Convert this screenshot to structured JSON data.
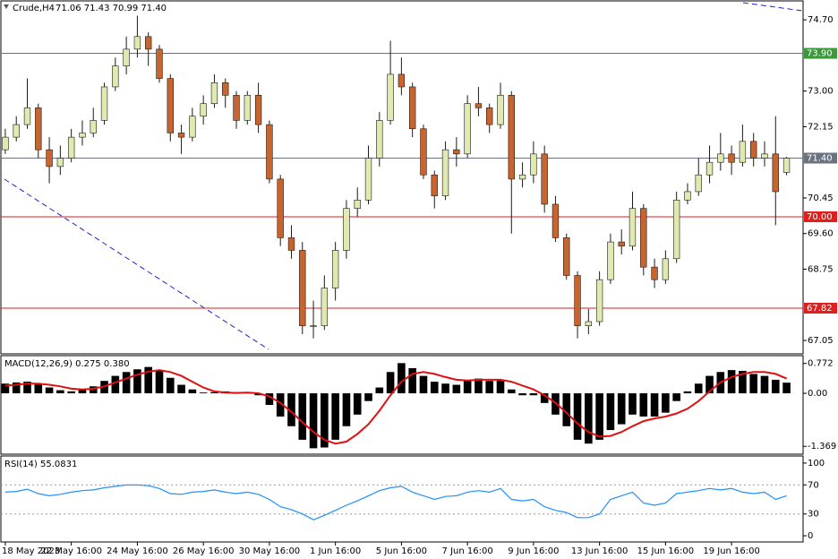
{
  "chart_data": {
    "type": "candlestick",
    "symbol": "Crude,H4",
    "ohlc_label": "71.06 71.43 70.99 71.40",
    "bull_color": "#dfe9b0",
    "bear_color": "#c8642d",
    "wick_color": "#1a1a1a",
    "xlim": [
      -0.4,
      72.5
    ],
    "xticks": [
      {
        "value": 0,
        "label": "18 May 2023"
      },
      {
        "value": 6,
        "label": "22 May 16:00"
      },
      {
        "value": 12,
        "label": "24 May 16:00"
      },
      {
        "value": 18,
        "label": "26 May 16:00"
      },
      {
        "value": 24,
        "label": "30 May 16:00"
      },
      {
        "value": 30,
        "label": "1 Jun 16:00"
      },
      {
        "value": 36,
        "label": "5 Jun 16:00"
      },
      {
        "value": 42,
        "label": "7 Jun 16:00"
      },
      {
        "value": 48,
        "label": "9 Jun 16:00"
      },
      {
        "value": 54,
        "label": "13 Jun 16:00"
      },
      {
        "value": 60,
        "label": "15 Jun 16:00"
      },
      {
        "value": 66,
        "label": "19 Jun 16:00"
      }
    ],
    "ylim": [
      66.73,
      75.13
    ],
    "yticks": [
      {
        "value": 74.7,
        "label": "74.70"
      },
      {
        "value": 73,
        "label": "73.00"
      },
      {
        "value": 72.15,
        "label": "72.15"
      },
      {
        "value": 70.45,
        "label": "70.45"
      },
      {
        "value": 69.6,
        "label": "69.60"
      },
      {
        "value": 68.75,
        "label": "68.75"
      },
      {
        "value": 67.05,
        "label": "67.05"
      }
    ],
    "levels": [
      {
        "value": 73.9,
        "label": "73.90",
        "color": "#3a9a3a"
      },
      {
        "value": 71.4,
        "label": "71.40",
        "color": "#6b7280"
      },
      {
        "value": 70,
        "label": "70.00",
        "color": "#e01e1e"
      },
      {
        "value": 67.82,
        "label": "67.82",
        "color": "#e01e1e"
      }
    ],
    "candles": [
      [
        71.6,
        72.1,
        71.5,
        71.9
      ],
      [
        71.9,
        72.4,
        71.8,
        72.2
      ],
      [
        72.2,
        73.3,
        72.1,
        72.6
      ],
      [
        72.6,
        72.7,
        71.4,
        71.6
      ],
      [
        71.6,
        71.9,
        70.8,
        71.2
      ],
      [
        71.2,
        71.7,
        71.0,
        71.4
      ],
      [
        71.4,
        72.1,
        71.3,
        71.9
      ],
      [
        71.9,
        72.3,
        71.7,
        72.0
      ],
      [
        72.0,
        72.6,
        71.9,
        72.3
      ],
      [
        72.3,
        73.2,
        72.2,
        73.1
      ],
      [
        73.1,
        73.8,
        73.0,
        73.6
      ],
      [
        73.6,
        74.3,
        73.4,
        74.0
      ],
      [
        74.0,
        74.8,
        73.8,
        74.3
      ],
      [
        74.3,
        74.4,
        73.6,
        74.0
      ],
      [
        74.0,
        74.1,
        73.2,
        73.3
      ],
      [
        73.3,
        73.4,
        71.8,
        72.0
      ],
      [
        72.0,
        72.2,
        71.5,
        71.9
      ],
      [
        71.9,
        72.6,
        71.8,
        72.4
      ],
      [
        72.4,
        72.9,
        72.2,
        72.7
      ],
      [
        72.7,
        73.4,
        72.6,
        73.2
      ],
      [
        73.2,
        73.3,
        72.6,
        72.9
      ],
      [
        72.9,
        73.0,
        72.1,
        72.3
      ],
      [
        72.3,
        73.0,
        72.2,
        72.9
      ],
      [
        72.9,
        73.2,
        72.0,
        72.2
      ],
      [
        72.2,
        72.3,
        70.8,
        70.9
      ],
      [
        70.9,
        71.0,
        69.3,
        69.5
      ],
      [
        69.5,
        69.8,
        69.0,
        69.2
      ],
      [
        69.2,
        69.4,
        67.2,
        67.4
      ],
      [
        67.4,
        68.0,
        67.1,
        67.4
      ],
      [
        67.4,
        68.6,
        67.3,
        68.3
      ],
      [
        68.3,
        69.4,
        68.0,
        69.2
      ],
      [
        69.2,
        70.4,
        69.0,
        70.2
      ],
      [
        70.2,
        70.7,
        70.0,
        70.4
      ],
      [
        70.4,
        71.7,
        70.3,
        71.4
      ],
      [
        71.4,
        72.5,
        71.2,
        72.3
      ],
      [
        72.3,
        74.2,
        72.2,
        73.4
      ],
      [
        73.4,
        73.8,
        72.9,
        73.1
      ],
      [
        73.1,
        73.2,
        71.9,
        72.1
      ],
      [
        72.1,
        72.2,
        70.9,
        71.0
      ],
      [
        71.0,
        71.1,
        70.2,
        70.5
      ],
      [
        70.5,
        71.8,
        70.4,
        71.6
      ],
      [
        71.6,
        71.9,
        71.2,
        71.5
      ],
      [
        71.5,
        72.9,
        71.4,
        72.7
      ],
      [
        72.7,
        73.1,
        72.4,
        72.6
      ],
      [
        72.6,
        72.7,
        72.0,
        72.2
      ],
      [
        72.2,
        73.2,
        72.1,
        72.9
      ],
      [
        72.9,
        73.0,
        69.6,
        70.9
      ],
      [
        70.9,
        71.3,
        70.7,
        71.0
      ],
      [
        71.0,
        71.8,
        70.8,
        71.5
      ],
      [
        71.5,
        71.7,
        70.1,
        70.3
      ],
      [
        70.3,
        70.5,
        69.4,
        69.5
      ],
      [
        69.5,
        69.6,
        68.5,
        68.6
      ],
      [
        68.6,
        68.7,
        67.1,
        67.4
      ],
      [
        67.4,
        67.8,
        67.2,
        67.5
      ],
      [
        67.5,
        68.7,
        67.4,
        68.5
      ],
      [
        68.5,
        69.6,
        68.4,
        69.4
      ],
      [
        69.4,
        69.7,
        69.1,
        69.3
      ],
      [
        69.3,
        70.6,
        69.2,
        70.2
      ],
      [
        70.2,
        70.3,
        68.6,
        68.8
      ],
      [
        68.8,
        69.0,
        68.3,
        68.5
      ],
      [
        68.5,
        69.2,
        68.4,
        69.0
      ],
      [
        69.0,
        70.6,
        68.9,
        70.4
      ],
      [
        70.4,
        70.8,
        70.3,
        70.6
      ],
      [
        70.6,
        71.4,
        70.5,
        71.0
      ],
      [
        71.0,
        71.7,
        70.8,
        71.3
      ],
      [
        71.3,
        72.0,
        71.1,
        71.5
      ],
      [
        71.5,
        71.7,
        71.0,
        71.3
      ],
      [
        71.3,
        72.2,
        71.2,
        71.8
      ],
      [
        71.8,
        72.0,
        71.2,
        71.4
      ],
      [
        71.4,
        71.8,
        71.2,
        71.5
      ],
      [
        71.5,
        72.4,
        69.8,
        70.6
      ],
      [
        71.06,
        71.43,
        70.99,
        71.4
      ]
    ],
    "macd": {
      "label": "MACD(12,26,9) 0.275 0.380",
      "ylim": [
        -1.55,
        0.95
      ],
      "yticks": [
        0.772,
        {
          "value": 0,
          "label": "0.00"
        },
        -1.369
      ],
      "histogram_color": "#000000",
      "signal_color": "#e01010",
      "histogram": [
        0.25,
        0.28,
        0.3,
        0.25,
        0.15,
        0.08,
        0.05,
        0.1,
        0.18,
        0.32,
        0.45,
        0.55,
        0.62,
        0.68,
        0.6,
        0.4,
        0.22,
        0.1,
        0.02,
        0.03,
        0.05,
        0.0,
        0.03,
        -0.05,
        -0.3,
        -0.6,
        -0.85,
        -1.2,
        -1.42,
        -1.4,
        -1.2,
        -0.85,
        -0.55,
        -0.2,
        0.15,
        0.55,
        0.78,
        0.65,
        0.45,
        0.3,
        0.25,
        0.22,
        0.35,
        0.38,
        0.32,
        0.35,
        0.1,
        -0.05,
        -0.05,
        -0.25,
        -0.55,
        -0.85,
        -1.2,
        -1.3,
        -1.2,
        -0.95,
        -0.8,
        -0.55,
        -0.6,
        -0.6,
        -0.5,
        -0.2,
        0.05,
        0.25,
        0.45,
        0.55,
        0.6,
        0.58,
        0.5,
        0.45,
        0.35,
        0.275
      ],
      "signal": [
        0.2,
        0.22,
        0.25,
        0.25,
        0.22,
        0.18,
        0.12,
        0.1,
        0.12,
        0.18,
        0.28,
        0.38,
        0.48,
        0.56,
        0.6,
        0.55,
        0.45,
        0.3,
        0.15,
        0.05,
        0.02,
        0.01,
        0.02,
        0.0,
        -0.08,
        -0.25,
        -0.48,
        -0.75,
        -1.0,
        -1.2,
        -1.3,
        -1.25,
        -1.05,
        -0.8,
        -0.45,
        -0.05,
        0.3,
        0.5,
        0.55,
        0.5,
        0.42,
        0.35,
        0.33,
        0.35,
        0.35,
        0.35,
        0.3,
        0.2,
        0.1,
        -0.05,
        -0.25,
        -0.5,
        -0.78,
        -1.0,
        -1.12,
        -1.1,
        -1.0,
        -0.85,
        -0.72,
        -0.65,
        -0.6,
        -0.52,
        -0.4,
        -0.2,
        0.05,
        0.28,
        0.42,
        0.5,
        0.55,
        0.55,
        0.5,
        0.38
      ]
    },
    "rsi": {
      "label": "RSI(14) 55.0831",
      "ylim": [
        -7.3,
        108.5
      ],
      "yticks": [
        100,
        70,
        30,
        0
      ],
      "levels": [
        70,
        30
      ],
      "color": "#1e90ff",
      "values": [
        60,
        61,
        64,
        58,
        55,
        57,
        60,
        62,
        63,
        66,
        68,
        70,
        70,
        69,
        65,
        58,
        57,
        60,
        61,
        63,
        60,
        58,
        60,
        57,
        50,
        40,
        36,
        30,
        22,
        28,
        35,
        42,
        48,
        55,
        62,
        66,
        68,
        60,
        55,
        50,
        54,
        55,
        60,
        62,
        60,
        65,
        50,
        48,
        50,
        40,
        35,
        32,
        25,
        25,
        30,
        50,
        55,
        60,
        45,
        42,
        45,
        58,
        60,
        62,
        65,
        63,
        65,
        60,
        58,
        60,
        50,
        55.0831
      ]
    }
  }
}
